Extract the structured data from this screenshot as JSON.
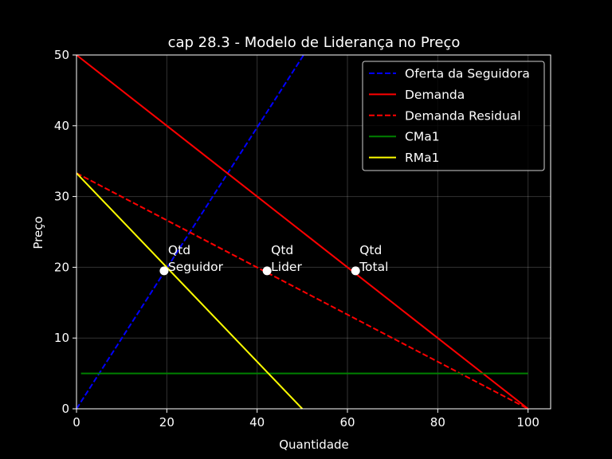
{
  "chart_data": {
    "type": "line",
    "title": "cap 28.3 - Modelo de Liderança no Preço",
    "xlabel": "Quantidade",
    "ylabel": "Preço",
    "xlim": [
      0,
      105
    ],
    "ylim": [
      0,
      50
    ],
    "xticks": [
      0,
      20,
      40,
      60,
      80,
      100
    ],
    "yticks": [
      0,
      10,
      20,
      30,
      40,
      50
    ],
    "grid": true,
    "legend_position": "top-right",
    "background": "#000000",
    "series": [
      {
        "name": "Oferta da Seguidora",
        "color": "#0000ff",
        "dash": true,
        "points": [
          [
            0,
            0
          ],
          [
            50.3,
            50
          ]
        ]
      },
      {
        "name": "Demanda",
        "color": "#ff0000",
        "dash": false,
        "points": [
          [
            0,
            50
          ],
          [
            100,
            0
          ]
        ]
      },
      {
        "name": "Demanda Residual",
        "color": "#ff0000",
        "dash": true,
        "points": [
          [
            0,
            33.3
          ],
          [
            100,
            0
          ]
        ]
      },
      {
        "name": "CMa1",
        "color": "#008000",
        "dash": false,
        "points": [
          [
            1,
            5
          ],
          [
            100,
            5
          ]
        ]
      },
      {
        "name": "RMa1",
        "color": "#ffff00",
        "dash": false,
        "points": [
          [
            0,
            33.3
          ],
          [
            50,
            0
          ]
        ]
      }
    ],
    "annotations": [
      {
        "line1": "Qtd",
        "line2": "Seguidor",
        "x": 19.4,
        "y": 19.5
      },
      {
        "line1": "Qtd",
        "line2": "Lider",
        "x": 42.2,
        "y": 19.5
      },
      {
        "line1": "Qtd",
        "line2": "Total",
        "x": 61.8,
        "y": 19.5
      }
    ]
  }
}
